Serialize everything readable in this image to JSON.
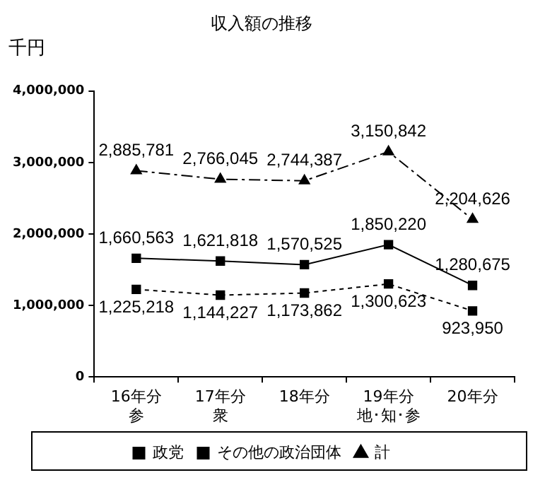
{
  "chart_data": {
    "type": "line",
    "title": "収入額の推移",
    "ylabel": "千円",
    "categories": [
      "16年分参",
      "17年分衆",
      "18年分",
      "19年分地･知･参",
      "20年分"
    ],
    "series": [
      {
        "name": "政党",
        "color": "#000000",
        "values": [
          1660563,
          1621818,
          1570525,
          1850220,
          1280675
        ],
        "value_labels": [
          "1,660,563",
          "1,621,818",
          "1,570,525",
          "1,850,220",
          "1,280,675"
        ],
        "marker": "square",
        "line_style": "solid"
      },
      {
        "name": "その他の政治団体",
        "color": "#000000",
        "values": [
          1225218,
          1144227,
          1173862,
          1300623,
          923950
        ],
        "value_labels": [
          "1,225,218",
          "1,144,227",
          "1,173,862",
          "1,300,623",
          "923,950"
        ],
        "marker": "square",
        "line_style": "dotted"
      },
      {
        "name": "計",
        "color": "#000000",
        "values": [
          2885781,
          2766045,
          2744387,
          3150842,
          2204626
        ],
        "value_labels": [
          "2,885,781",
          "2,766,045",
          "2,744,387",
          "3,150,842",
          "2,204,626"
        ],
        "marker": "triangle",
        "line_style": "dashed"
      }
    ],
    "ylim": [
      0,
      4000000
    ],
    "yticks": [
      0,
      {
        "value": 1000000,
        "label": "1,000,000"
      },
      {
        "value": 2000000,
        "label": "2,000,000"
      },
      {
        "value": 3000000,
        "label": "3,000,000"
      },
      {
        "value": 4000000,
        "label": "4,000,000"
      }
    ],
    "grid": false,
    "legend": "bottom"
  }
}
